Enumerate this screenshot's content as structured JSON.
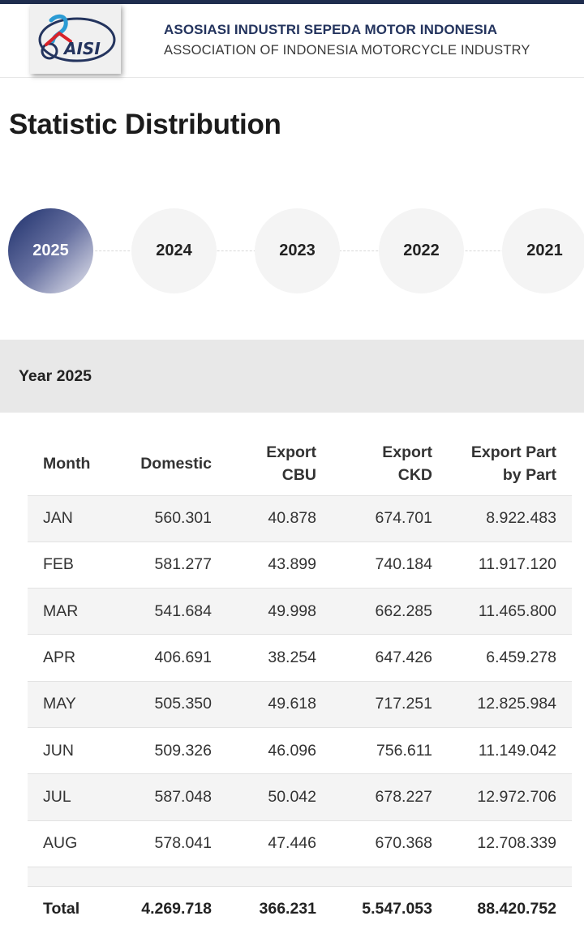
{
  "header": {
    "logo_text": "AISI",
    "org_name": "ASOSIASI INDUSTRI SEPEDA MOTOR INDONESIA",
    "org_subtitle": "ASSOCIATION OF INDONESIA MOTORCYCLE INDUSTRY",
    "brand_color": "#1f2d4e"
  },
  "page_title": "Statistic Distribution",
  "years": {
    "selected": "2025",
    "items": [
      "2025",
      "2024",
      "2023",
      "2022",
      "2021"
    ]
  },
  "year_heading": "Year 2025",
  "table": {
    "columns": [
      "Month",
      "Domestic",
      "Export CBU",
      "Export CKD",
      "Export Part by Part"
    ],
    "column_lines": [
      [
        "Month"
      ],
      [
        "Domestic"
      ],
      [
        "Export",
        "CBU"
      ],
      [
        "Export",
        "CKD"
      ],
      [
        "Export Part",
        "by Part"
      ]
    ],
    "rows": [
      [
        "JAN",
        "560.301",
        "40.878",
        "674.701",
        "8.922.483"
      ],
      [
        "FEB",
        "581.277",
        "43.899",
        "740.184",
        "11.917.120"
      ],
      [
        "MAR",
        "541.684",
        "49.998",
        "662.285",
        "11.465.800"
      ],
      [
        "APR",
        "406.691",
        "38.254",
        "647.426",
        "6.459.278"
      ],
      [
        "MAY",
        "505.350",
        "49.618",
        "717.251",
        "12.825.984"
      ],
      [
        "JUN",
        "509.326",
        "46.096",
        "756.611",
        "11.149.042"
      ],
      [
        "JUL",
        "587.048",
        "50.042",
        "678.227",
        "12.972.706"
      ],
      [
        "AUG",
        "578.041",
        "47.446",
        "670.368",
        "12.708.339"
      ]
    ],
    "total": [
      "Total",
      "4.269.718",
      "366.231",
      "5.547.053",
      "88.420.752"
    ]
  }
}
